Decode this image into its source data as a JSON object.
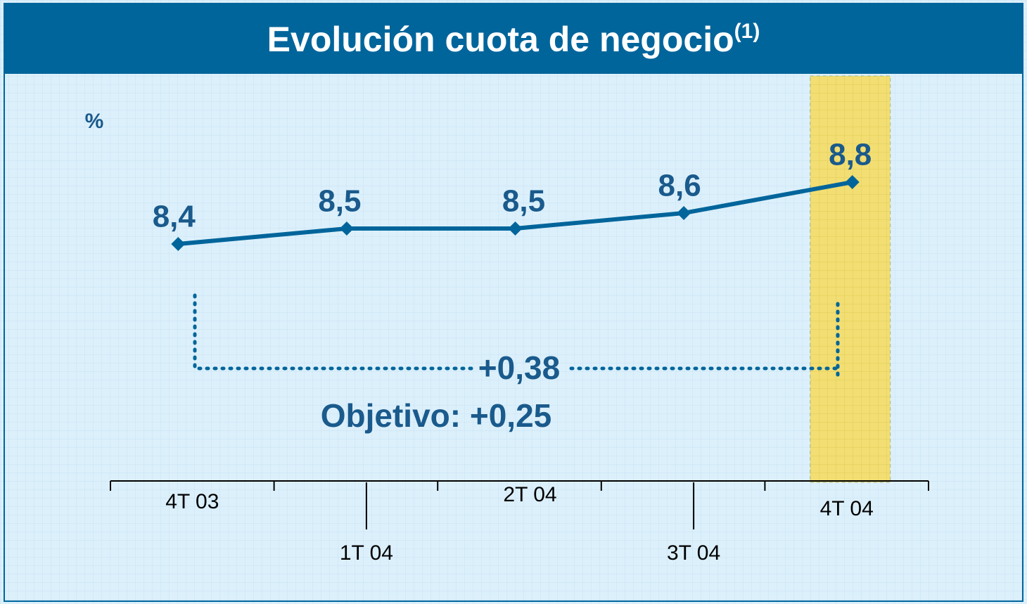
{
  "chart_data": {
    "type": "line",
    "title": "Evolución cuota de negocio",
    "title_superscript": "(1)",
    "unit_label": "%",
    "categories": [
      "4T 03",
      "1T 04",
      "2T 04",
      "3T 04",
      "4T 04"
    ],
    "values": [
      8.4,
      8.5,
      8.5,
      8.6,
      8.8
    ],
    "value_labels": [
      "8,4",
      "8,5",
      "8,5",
      "8,6",
      "8,8"
    ],
    "color": "#00659b",
    "highlight_category": "4T 04",
    "annotations": [
      "+0,38",
      "Objetivo: +0,25"
    ]
  }
}
